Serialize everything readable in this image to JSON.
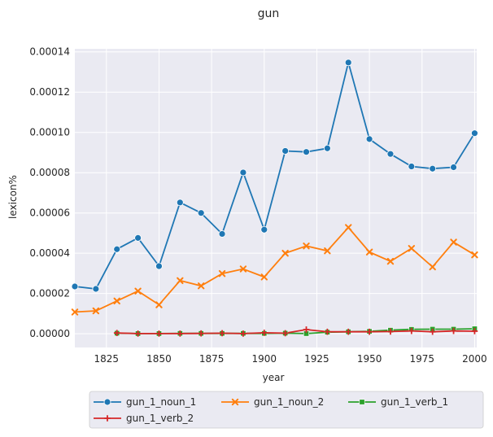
{
  "chart_data": {
    "type": "line",
    "title": "gun",
    "xlabel": "year",
    "ylabel": "lexicon%",
    "xlim": [
      1810,
      2001
    ],
    "ylim": [
      -6.8e-06,
      0.0001415
    ],
    "xticks": [
      1825,
      1850,
      1875,
      1900,
      1925,
      1950,
      1975,
      2000
    ],
    "xtick_labels": [
      "1825",
      "1850",
      "1875",
      "1900",
      "1925",
      "1950",
      "1975",
      "2000"
    ],
    "yticks": [
      0,
      2e-05,
      4e-05,
      6e-05,
      8e-05,
      0.0001,
      0.00012,
      0.00014
    ],
    "ytick_labels": [
      "0.00000",
      "0.00002",
      "0.00004",
      "0.00006",
      "0.00008",
      "0.00010",
      "0.00012",
      "0.00014"
    ],
    "grid": true,
    "legend_position": "bottom",
    "background": "#eaeaf2",
    "series": [
      {
        "name": "gun_1_noun_1",
        "color": "#1f77b4",
        "marker": "circle",
        "x": [
          1810,
          1820,
          1830,
          1840,
          1850,
          1860,
          1870,
          1880,
          1890,
          1900,
          1910,
          1920,
          1930,
          1940,
          1950,
          1960,
          1970,
          1980,
          1990,
          2000
        ],
        "y": [
          2.35e-05,
          2.23e-05,
          4.2e-05,
          4.76e-05,
          3.36e-05,
          6.52e-05,
          6e-05,
          4.96e-05,
          8.01e-05,
          5.17e-05,
          9.08e-05,
          9.03e-05,
          9.21e-05,
          0.0001347,
          9.67e-05,
          8.93e-05,
          8.31e-05,
          8.2e-05,
          8.27e-05,
          9.96e-05
        ]
      },
      {
        "name": "gun_1_noun_2",
        "color": "#ff7f0e",
        "marker": "x",
        "x": [
          1810,
          1820,
          1830,
          1840,
          1850,
          1860,
          1870,
          1880,
          1890,
          1900,
          1910,
          1920,
          1930,
          1940,
          1950,
          1960,
          1970,
          1980,
          1990,
          2000
        ],
        "y": [
          1.08e-05,
          1.14e-05,
          1.63e-05,
          2.12e-05,
          1.44e-05,
          2.64e-05,
          2.38e-05,
          2.99e-05,
          3.22e-05,
          2.82e-05,
          4e-05,
          4.36e-05,
          4.12e-05,
          5.28e-05,
          4.06e-05,
          3.6e-05,
          4.24e-05,
          3.32e-05,
          4.55e-05,
          3.92e-05
        ]
      },
      {
        "name": "gun_1_verb_1",
        "color": "#2ca02c",
        "marker": "square",
        "x": [
          1830,
          1840,
          1850,
          1860,
          1870,
          1880,
          1890,
          1900,
          1910,
          1920,
          1930,
          1940,
          1950,
          1960,
          1970,
          1980,
          1990,
          2000
        ],
        "y": [
          3e-07,
          1e-07,
          1e-07,
          2e-07,
          2e-07,
          2e-07,
          2e-07,
          2e-07,
          3e-07,
          1e-07,
          8e-07,
          1e-06,
          1.2e-06,
          1.8e-06,
          2.2e-06,
          2.3e-06,
          2.3e-06,
          2.5e-06
        ]
      },
      {
        "name": "gun_1_verb_2",
        "color": "#d62728",
        "marker": "plus",
        "x": [
          1830,
          1840,
          1850,
          1860,
          1870,
          1880,
          1890,
          1900,
          1910,
          1920,
          1930,
          1940,
          1950,
          1960,
          1970,
          1980,
          1990,
          2000
        ],
        "y": [
          4e-07,
          1e-07,
          1e-07,
          1e-07,
          2e-07,
          3e-07,
          1e-07,
          5e-07,
          3e-07,
          2.1e-06,
          1e-06,
          1e-06,
          1e-06,
          1.1e-06,
          1.4e-06,
          1e-06,
          1.4e-06,
          1.3e-06
        ]
      }
    ]
  }
}
